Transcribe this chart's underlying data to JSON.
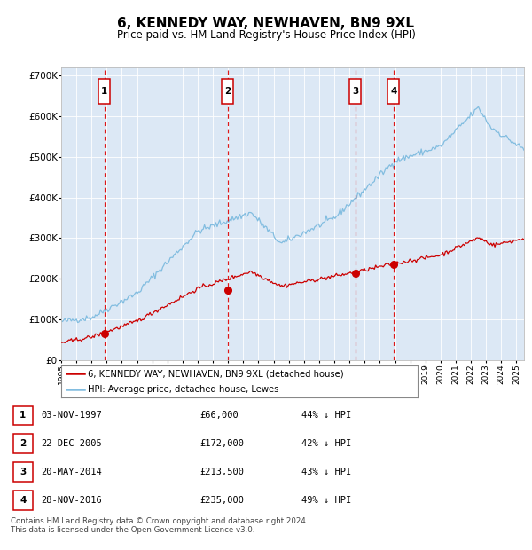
{
  "title": "6, KENNEDY WAY, NEWHAVEN, BN9 9XL",
  "subtitle": "Price paid vs. HM Land Registry's House Price Index (HPI)",
  "background_color": "#ffffff",
  "plot_bg_color": "#dce8f5",
  "ylim": [
    0,
    720000
  ],
  "yticks": [
    0,
    100000,
    200000,
    300000,
    400000,
    500000,
    600000,
    700000
  ],
  "ytick_labels": [
    "£0",
    "£100K",
    "£200K",
    "£300K",
    "£400K",
    "£500K",
    "£600K",
    "£700K"
  ],
  "sale_dates_num": [
    1997.84,
    2005.98,
    2014.38,
    2016.91
  ],
  "sale_prices": [
    66000,
    172000,
    213500,
    235000
  ],
  "sale_labels": [
    "1",
    "2",
    "3",
    "4"
  ],
  "hpi_color": "#82bde0",
  "price_color": "#cc0000",
  "vline_color": "#dd0000",
  "box_edge_color": "#cc0000",
  "legend_entries": [
    "6, KENNEDY WAY, NEWHAVEN, BN9 9XL (detached house)",
    "HPI: Average price, detached house, Lewes"
  ],
  "table_rows": [
    [
      "1",
      "03-NOV-1997",
      "£66,000",
      "44% ↓ HPI"
    ],
    [
      "2",
      "22-DEC-2005",
      "£172,000",
      "42% ↓ HPI"
    ],
    [
      "3",
      "20-MAY-2014",
      "£213,500",
      "43% ↓ HPI"
    ],
    [
      "4",
      "28-NOV-2016",
      "£235,000",
      "49% ↓ HPI"
    ]
  ],
  "footnote": "Contains HM Land Registry data © Crown copyright and database right 2024.\nThis data is licensed under the Open Government Licence v3.0.",
  "xmin": 1995.0,
  "xmax": 2025.5
}
